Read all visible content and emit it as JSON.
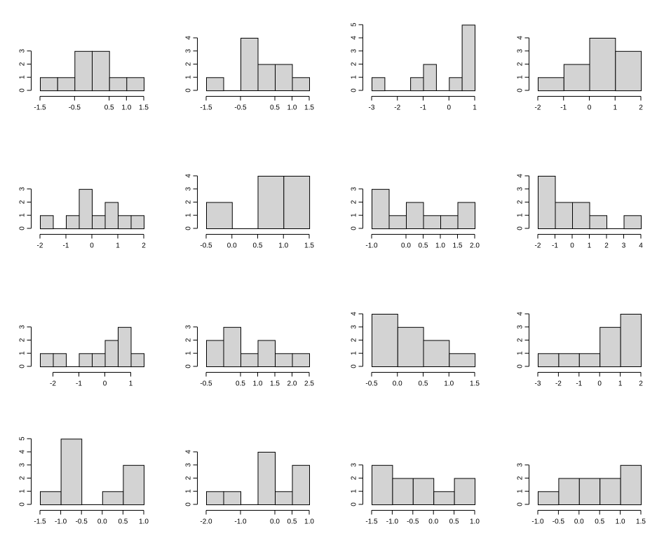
{
  "chart_data": [
    {
      "type": "bar",
      "breaks": [
        -1.5,
        -1.0,
        -0.5,
        0.0,
        0.5,
        1.0,
        1.5
      ],
      "counts": [
        1,
        1,
        3,
        3,
        1,
        1
      ],
      "xticks": [
        -1.5,
        -0.5,
        0.5,
        1.0,
        1.5
      ],
      "xtick_labels": [
        "-1.5",
        "-0.5",
        "0.5",
        "1.0",
        "1.5"
      ],
      "ylim": [
        0,
        3
      ],
      "yticks": [
        0,
        1,
        2,
        3
      ],
      "ytick_labels": [
        "0",
        "1",
        "2",
        "3"
      ]
    },
    {
      "type": "bar",
      "breaks": [
        -1.5,
        -1.0,
        -0.5,
        0.0,
        0.5,
        1.0,
        1.5
      ],
      "counts": [
        1,
        0,
        4,
        2,
        2,
        1
      ],
      "xticks": [
        -1.5,
        -0.5,
        0.5,
        1.0,
        1.5
      ],
      "xtick_labels": [
        "-1.5",
        "-0.5",
        "0.5",
        "1.0",
        "1.5"
      ],
      "ylim": [
        0,
        4
      ],
      "yticks": [
        0,
        1,
        2,
        3,
        4
      ],
      "ytick_labels": [
        "0",
        "1",
        "2",
        "3",
        "4"
      ]
    },
    {
      "type": "bar",
      "breaks": [
        -3.0,
        -2.5,
        -2.0,
        -1.5,
        -1.0,
        -0.5,
        0.0,
        0.5,
        1.0
      ],
      "counts": [
        1,
        0,
        0,
        1,
        2,
        0,
        1,
        5
      ],
      "xticks": [
        -3,
        -2,
        -1,
        0,
        1
      ],
      "xtick_labels": [
        "-3",
        "-2",
        "-1",
        "0",
        "1"
      ],
      "ylim": [
        0,
        5
      ],
      "yticks": [
        0,
        1,
        2,
        3,
        4,
        5
      ],
      "ytick_labels": [
        "0",
        "1",
        "2",
        "3",
        "4",
        "5"
      ]
    },
    {
      "type": "bar",
      "breaks": [
        -2,
        -1,
        0,
        1,
        2
      ],
      "counts": [
        1,
        2,
        4,
        3
      ],
      "xticks": [
        -2,
        -1,
        0,
        1,
        2
      ],
      "xtick_labels": [
        "-2",
        "-1",
        "0",
        "1",
        "2"
      ],
      "ylim": [
        0,
        4
      ],
      "yticks": [
        0,
        1,
        2,
        3,
        4
      ],
      "ytick_labels": [
        "0",
        "1",
        "2",
        "3",
        "4"
      ]
    },
    {
      "type": "bar",
      "breaks": [
        -2.0,
        -1.5,
        -1.0,
        -0.5,
        0.0,
        0.5,
        1.0,
        1.5,
        2.0
      ],
      "counts": [
        1,
        0,
        1,
        3,
        1,
        2,
        1,
        1
      ],
      "xticks": [
        -2,
        -1,
        0,
        1,
        2
      ],
      "xtick_labels": [
        "-2",
        "-1",
        "0",
        "1",
        "2"
      ],
      "ylim": [
        0,
        3
      ],
      "yticks": [
        0,
        1,
        2,
        3
      ],
      "ytick_labels": [
        "0",
        "1",
        "2",
        "3"
      ]
    },
    {
      "type": "bar",
      "breaks": [
        -0.5,
        0.0,
        0.5,
        1.0,
        1.5
      ],
      "counts": [
        2,
        0,
        4,
        4
      ],
      "xticks": [
        -0.5,
        0.0,
        0.5,
        1.0,
        1.5
      ],
      "xtick_labels": [
        "-0.5",
        "0.0",
        "0.5",
        "1.0",
        "1.5"
      ],
      "ylim": [
        0,
        4
      ],
      "yticks": [
        0,
        1,
        2,
        3,
        4
      ],
      "ytick_labels": [
        "0",
        "1",
        "2",
        "3",
        "4"
      ]
    },
    {
      "type": "bar",
      "breaks": [
        -1.0,
        -0.5,
        0.0,
        0.5,
        1.0,
        1.5,
        2.0
      ],
      "counts": [
        3,
        1,
        2,
        1,
        1,
        2
      ],
      "xticks": [
        -1.0,
        0.0,
        0.5,
        1.0,
        1.5,
        2.0
      ],
      "xtick_labels": [
        "-1.0",
        "0.0",
        "0.5",
        "1.0",
        "1.5",
        "2.0"
      ],
      "ylim": [
        0,
        3
      ],
      "yticks": [
        0,
        1,
        2,
        3
      ],
      "ytick_labels": [
        "0",
        "1",
        "2",
        "3"
      ]
    },
    {
      "type": "bar",
      "breaks": [
        -2,
        -1,
        0,
        1,
        2,
        3,
        4
      ],
      "counts": [
        4,
        2,
        2,
        1,
        0,
        1
      ],
      "xticks": [
        -2,
        -1,
        0,
        1,
        2,
        3,
        4
      ],
      "xtick_labels": [
        "-2",
        "-1",
        "0",
        "1",
        "2",
        "3",
        "4"
      ],
      "ylim": [
        0,
        4
      ],
      "yticks": [
        0,
        1,
        2,
        3,
        4
      ],
      "ytick_labels": [
        "0",
        "1",
        "2",
        "3",
        "4"
      ]
    },
    {
      "type": "bar",
      "breaks": [
        -2.5,
        -2.0,
        -1.5,
        -1.0,
        -0.5,
        0.0,
        0.5,
        1.0,
        1.5
      ],
      "counts": [
        1,
        1,
        0,
        1,
        1,
        2,
        3,
        1
      ],
      "xticks": [
        -2,
        -1,
        0,
        1
      ],
      "xtick_labels": [
        "-2",
        "-1",
        "0",
        "1"
      ],
      "ylim": [
        0,
        3
      ],
      "yticks": [
        0,
        1,
        2,
        3
      ],
      "ytick_labels": [
        "0",
        "1",
        "2",
        "3"
      ]
    },
    {
      "type": "bar",
      "breaks": [
        -0.5,
        0.0,
        0.5,
        1.0,
        1.5,
        2.0,
        2.5
      ],
      "counts": [
        2,
        3,
        1,
        2,
        1,
        1
      ],
      "xticks": [
        -0.5,
        0.5,
        1.0,
        1.5,
        2.0,
        2.5
      ],
      "xtick_labels": [
        "-0.5",
        "0.5",
        "1.0",
        "1.5",
        "2.0",
        "2.5"
      ],
      "ylim": [
        0,
        3
      ],
      "yticks": [
        0,
        1,
        2,
        3
      ],
      "ytick_labels": [
        "0",
        "1",
        "2",
        "3"
      ]
    },
    {
      "type": "bar",
      "breaks": [
        -0.5,
        0.0,
        0.5,
        1.0,
        1.5
      ],
      "counts": [
        4,
        3,
        2,
        1
      ],
      "xticks": [
        -0.5,
        0.0,
        0.5,
        1.0,
        1.5
      ],
      "xtick_labels": [
        "-0.5",
        "0.0",
        "0.5",
        "1.0",
        "1.5"
      ],
      "ylim": [
        0,
        4
      ],
      "yticks": [
        0,
        1,
        2,
        3,
        4
      ],
      "ytick_labels": [
        "0",
        "1",
        "2",
        "3",
        "4"
      ]
    },
    {
      "type": "bar",
      "breaks": [
        -3,
        -2,
        -1,
        0,
        1,
        2
      ],
      "counts": [
        1,
        1,
        1,
        3,
        4
      ],
      "xticks": [
        -3,
        -2,
        -1,
        0,
        1,
        2
      ],
      "xtick_labels": [
        "-3",
        "-2",
        "-1",
        "0",
        "1",
        "2"
      ],
      "ylim": [
        0,
        4
      ],
      "yticks": [
        0,
        1,
        2,
        3,
        4
      ],
      "ytick_labels": [
        "0",
        "1",
        "2",
        "3",
        "4"
      ]
    },
    {
      "type": "bar",
      "breaks": [
        -1.5,
        -1.0,
        -0.5,
        0.0,
        0.5,
        1.0
      ],
      "counts": [
        1,
        5,
        0,
        1,
        3
      ],
      "xticks": [
        -1.5,
        -1.0,
        -0.5,
        0.0,
        0.5,
        1.0
      ],
      "xtick_labels": [
        "-1.5",
        "-1.0",
        "-0.5",
        "0.0",
        "0.5",
        "1.0"
      ],
      "ylim": [
        0,
        5
      ],
      "yticks": [
        0,
        1,
        2,
        3,
        4,
        5
      ],
      "ytick_labels": [
        "0",
        "1",
        "2",
        "3",
        "4",
        "5"
      ]
    },
    {
      "type": "bar",
      "breaks": [
        -2.0,
        -1.5,
        -1.0,
        -0.5,
        0.0,
        0.5,
        1.0
      ],
      "counts": [
        1,
        1,
        0,
        4,
        1,
        3
      ],
      "xticks": [
        -2.0,
        -1.0,
        0.0,
        0.5,
        1.0
      ],
      "xtick_labels": [
        "-2.0",
        "-1.0",
        "0.0",
        "0.5",
        "1.0"
      ],
      "ylim": [
        0,
        4
      ],
      "yticks": [
        0,
        1,
        2,
        3,
        4
      ],
      "ytick_labels": [
        "0",
        "1",
        "2",
        "3",
        "4"
      ]
    },
    {
      "type": "bar",
      "breaks": [
        -1.5,
        -1.0,
        -0.5,
        0.0,
        0.5,
        1.0
      ],
      "counts": [
        3,
        2,
        2,
        1,
        2
      ],
      "xticks": [
        -1.5,
        -1.0,
        -0.5,
        0.0,
        0.5,
        1.0
      ],
      "xtick_labels": [
        "-1.5",
        "-1.0",
        "-0.5",
        "0.0",
        "0.5",
        "1.0"
      ],
      "ylim": [
        0,
        3
      ],
      "yticks": [
        0,
        1,
        2,
        3
      ],
      "ytick_labels": [
        "0",
        "1",
        "2",
        "3"
      ]
    },
    {
      "type": "bar",
      "breaks": [
        -1.0,
        -0.5,
        0.0,
        0.5,
        1.0,
        1.5
      ],
      "counts": [
        1,
        2,
        2,
        2,
        3
      ],
      "xticks": [
        -1.0,
        -0.5,
        0.0,
        0.5,
        1.0,
        1.5
      ],
      "xtick_labels": [
        "-1.0",
        "-0.5",
        "0.0",
        "0.5",
        "1.0",
        "1.5"
      ],
      "ylim": [
        0,
        3
      ],
      "yticks": [
        0,
        1,
        2,
        3
      ],
      "ytick_labels": [
        "0",
        "1",
        "2",
        "3"
      ]
    }
  ]
}
